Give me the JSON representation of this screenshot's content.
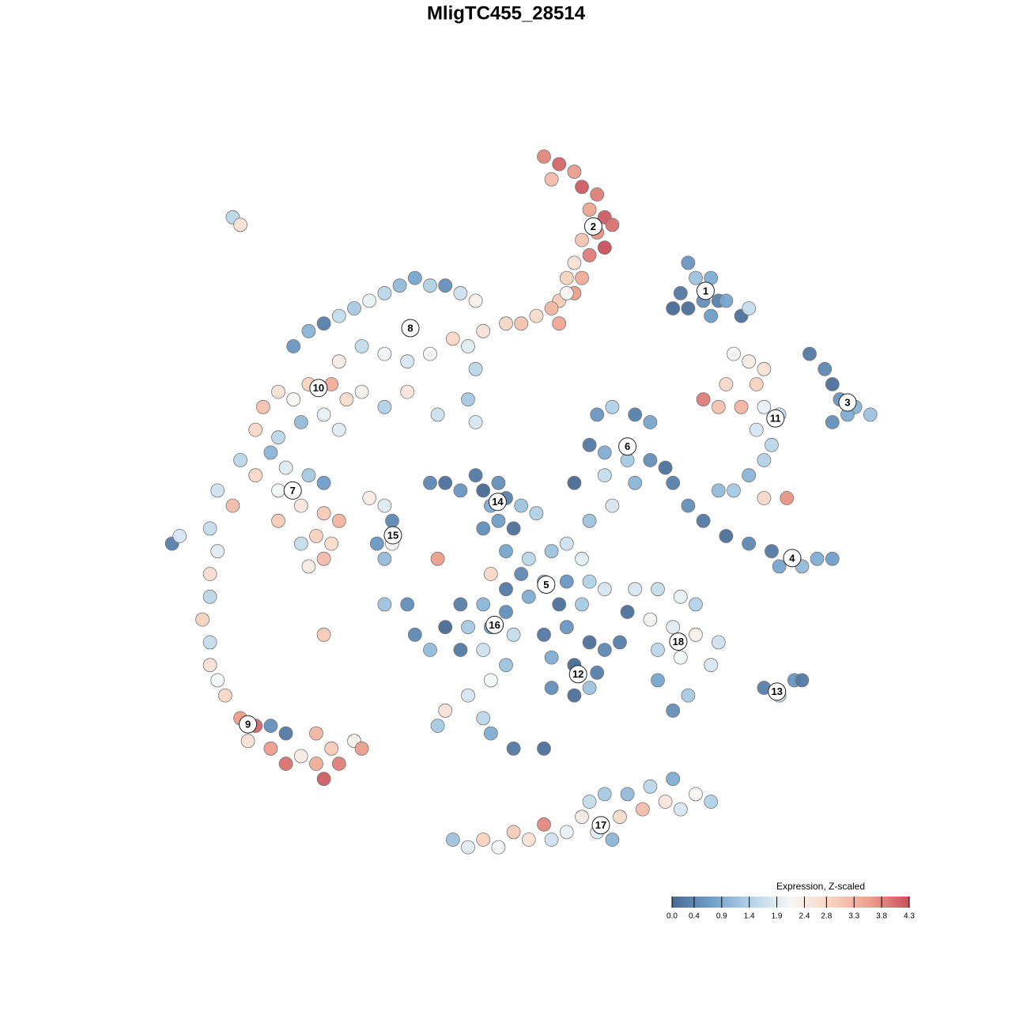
{
  "chart_data": {
    "type": "scatter",
    "title": "MligTC455_28514",
    "xlim": [
      -50,
      50
    ],
    "ylim": [
      -50,
      50
    ],
    "colorscale": [
      "#486a93",
      "#6f9fca",
      "#b4d4e8",
      "#f7f7f7",
      "#f9d4c2",
      "#eca08c",
      "#c9505c"
    ],
    "colorbar": {
      "title": "Expression, Z-scaled",
      "clim": [
        0,
        4.3
      ],
      "ticks": [
        {
          "value": 0,
          "label": "0.0"
        },
        0.4,
        0.9,
        1.4,
        1.9,
        2.4,
        2.8,
        3.3,
        3.8,
        4.3
      ]
    },
    "x": [
      5,
      7,
      9,
      6,
      10,
      12,
      11,
      13,
      14,
      12,
      10,
      13,
      11,
      9,
      10,
      8,
      9,
      7,
      6,
      4,
      2,
      0,
      7,
      8,
      24,
      25,
      27,
      23,
      26,
      28,
      24,
      27,
      29,
      22,
      31,
      40,
      42,
      43,
      44,
      46,
      48,
      43,
      45,
      30,
      32,
      34,
      33,
      29,
      26,
      28,
      31,
      34,
      36,
      33,
      35,
      34,
      32,
      30,
      28,
      34,
      37,
      22,
      24,
      26,
      29,
      32,
      35,
      38,
      41,
      43,
      39,
      36,
      12,
      14,
      17,
      19,
      11,
      13,
      16,
      19,
      21,
      13,
      17,
      9,
      14,
      11,
      -10,
      -8,
      -6,
      -4,
      -3,
      -1,
      -2,
      0,
      2,
      -1,
      1,
      4,
      -3,
      0,
      3,
      6,
      8,
      10,
      2,
      5,
      8,
      11,
      13,
      0,
      3,
      7,
      10,
      -2,
      -9,
      -6,
      -3,
      0,
      -8,
      -5,
      -2,
      1,
      -12,
      -10,
      -6,
      -3,
      0,
      -2,
      -5,
      -8,
      -9,
      -3,
      -2,
      1,
      5,
      8,
      11,
      13,
      6,
      9,
      12,
      6,
      9,
      11,
      15,
      16,
      17,
      20,
      23,
      25,
      19,
      22,
      25,
      28,
      20,
      23,
      27,
      20,
      24,
      22,
      34,
      36,
      38,
      39,
      -7,
      -5,
      -3,
      -1,
      1,
      3,
      5,
      6,
      8,
      10,
      11,
      13,
      12,
      15,
      16,
      18,
      19,
      21,
      22,
      23,
      25,
      27,
      14,
      -28,
      -26,
      -24,
      -22,
      -20,
      -18,
      -16,
      -14,
      -12,
      -10,
      -8,
      -6,
      -4,
      -3,
      -5,
      -7,
      -10,
      -13,
      -16,
      -19,
      -22,
      -4,
      -5,
      -4,
      -9,
      -13,
      -16,
      -30,
      -32,
      -28,
      -26,
      -23,
      -21,
      -24,
      -27,
      -33,
      -30,
      -22,
      -19,
      -35,
      -33,
      -31,
      -29,
      -26,
      -24,
      -30,
      -27,
      -24,
      -22,
      -25,
      -27,
      -24,
      -26,
      -23,
      -30,
      -36,
      -38,
      -18,
      -16,
      -15,
      -15,
      -16,
      -17,
      -39,
      -38,
      -39,
      -39,
      -40,
      -39,
      -39,
      -38,
      -37,
      -35,
      -33,
      -34,
      -31,
      -29,
      -31,
      -29,
      -27,
      -25,
      -23,
      -22,
      -24,
      -20,
      -19,
      -25,
      -36,
      -35,
      -44,
      -43,
      -24,
      -16,
      -13,
      5,
      32
    ],
    "y": [
      45,
      44,
      43,
      42,
      41,
      40,
      38,
      37,
      36,
      35,
      34,
      33,
      32,
      31,
      29,
      29,
      27,
      26,
      25,
      24,
      23,
      23,
      23,
      27,
      31,
      29,
      29,
      27,
      26,
      26,
      25,
      24,
      26,
      25,
      24,
      19,
      17,
      15,
      13,
      12,
      11,
      10,
      11,
      19,
      18,
      17,
      15,
      15,
      13,
      12,
      12,
      12,
      11,
      9,
      7,
      5,
      3,
      1,
      1,
      0,
      0,
      2,
      -1,
      -3,
      -5,
      -6,
      -7,
      -8,
      -8,
      -8,
      -9,
      -9,
      11,
      12,
      11,
      10,
      7,
      6,
      5,
      5,
      4,
      3,
      2,
      2,
      -1,
      -3,
      2,
      2,
      1,
      3,
      1,
      2,
      -1,
      0,
      -1,
      -3,
      -4,
      -2,
      -4,
      -7,
      -8,
      -7,
      -6,
      -8,
      -10,
      -11,
      -11,
      -11,
      -12,
      -12,
      -13,
      -14,
      -14,
      -10,
      -8,
      -14,
      -14,
      -15,
      -17,
      -17,
      -17,
      -18,
      -18,
      -20,
      -20,
      -20,
      -22,
      -24,
      -26,
      -28,
      -30,
      -29,
      -31,
      -33,
      -18,
      -17,
      -19,
      -20,
      -21,
      -22,
      -23,
      -25,
      -26,
      -25,
      -19,
      -15,
      -12,
      -12,
      -13,
      -14,
      -16,
      -17,
      -18,
      -19,
      -20,
      -21,
      -22,
      -24,
      -26,
      -28,
      -25,
      -26,
      -24,
      -24,
      -45,
      -46,
      -45,
      -46,
      -44,
      -45,
      -43,
      -45,
      -44,
      -42,
      -40,
      -39,
      -44,
      -42,
      -39,
      -41,
      -38,
      -40,
      -37,
      -41,
      -39,
      -40,
      -45,
      20,
      22,
      23,
      24,
      25,
      26,
      27,
      28,
      29,
      28,
      28,
      27,
      26,
      22,
      20,
      21,
      19,
      18,
      19,
      20,
      18,
      17,
      13,
      10,
      11,
      14,
      12,
      14,
      12,
      13,
      15,
      15,
      13,
      11,
      10,
      9,
      8,
      9,
      14,
      5,
      3,
      6,
      4,
      3,
      2,
      1,
      -1,
      -2,
      -3,
      -5,
      -6,
      -8,
      -9,
      -6,
      -3,
      -1,
      1,
      0,
      -1,
      -3,
      -6,
      -8,
      -6,
      -4,
      -7,
      -10,
      -13,
      -16,
      -19,
      -22,
      -24,
      -26,
      -29,
      -30,
      -32,
      -30,
      -31,
      -33,
      -35,
      -34,
      -35,
      -33,
      -35,
      -37,
      -32,
      -33,
      -31,
      37,
      36,
      -6,
      -5,
      -18,
      -14,
      -14,
      -33,
      25
    ],
    "values": [
      3.8,
      4.1,
      3.6,
      3.2,
      4.2,
      3.9,
      3.5,
      4.2,
      4.0,
      3.7,
      3.1,
      4.3,
      3.9,
      2.6,
      3.4,
      2.9,
      3.6,
      3.0,
      3.3,
      2.7,
      3.1,
      2.8,
      3.5,
      2.2,
      0.6,
      1.2,
      0.9,
      0.2,
      0.5,
      0.3,
      0.1,
      0.7,
      0.8,
      0.0,
      0.1,
      0.2,
      0.4,
      0.1,
      0.6,
      1.0,
      1.2,
      0.5,
      0.9,
      2.2,
      2.4,
      2.6,
      2.9,
      2.8,
      3.9,
      3.1,
      3.3,
      2.0,
      1.6,
      1.8,
      1.5,
      1.4,
      1.0,
      1.3,
      1.1,
      2.8,
      3.7,
      0.3,
      0.5,
      0.2,
      0.1,
      0.4,
      0.2,
      0.6,
      0.9,
      0.7,
      1.1,
      0.8,
      0.6,
      1.4,
      0.3,
      0.8,
      0.2,
      0.9,
      1.3,
      0.5,
      0.1,
      1.6,
      1.0,
      0.0,
      1.8,
      1.2,
      0.4,
      0.1,
      0.6,
      0.2,
      0.0,
      0.5,
      0.9,
      0.3,
      1.2,
      0.7,
      0.1,
      1.4,
      0.5,
      0.8,
      1.5,
      1.2,
      1.7,
      1.9,
      0.4,
      1.1,
      0.6,
      1.4,
      1.8,
      0.2,
      0.9,
      0.1,
      1.3,
      2.8,
      3.6,
      0.3,
      1.0,
      0.5,
      0.0,
      1.3,
      0.7,
      1.6,
      0.4,
      1.1,
      0.2,
      1.7,
      1.2,
      2.1,
      1.8,
      2.6,
      1.3,
      1.5,
      0.9,
      0.2,
      0.2,
      0.6,
      0.1,
      0.4,
      0.9,
      0.0,
      0.3,
      0.5,
      0.1,
      1.2,
      0.3,
      0.1,
      1.8,
      1.6,
      2.0,
      1.4,
      2.2,
      1.9,
      2.3,
      1.7,
      1.5,
      2.1,
      1.8,
      0.8,
      1.3,
      0.5,
      0.3,
      1.6,
      0.6,
      0.2,
      1.2,
      1.9,
      2.9,
      2.1,
      3.0,
      2.6,
      3.8,
      1.7,
      2.0,
      2.4,
      1.6,
      1.3,
      1.9,
      2.7,
      1.1,
      3.2,
      1.5,
      2.5,
      0.9,
      1.8,
      2.2,
      1.4,
      1.0,
      0.6,
      1.0,
      0.3,
      1.6,
      1.3,
      2.0,
      1.5,
      1.1,
      0.8,
      1.4,
      0.5,
      1.7,
      2.3,
      2.6,
      1.9,
      2.8,
      2.2,
      1.8,
      2.1,
      1.6,
      2.4,
      1.5,
      1.3,
      1.8,
      1.7,
      2.5,
      1.4,
      2.6,
      3.1,
      2.2,
      2.9,
      3.4,
      2.7,
      2.0,
      1.1,
      2.8,
      1.5,
      1.9,
      2.3,
      1.5,
      2.8,
      1.0,
      1.9,
      1.3,
      0.7,
      2.1,
      2.5,
      3.0,
      3.3,
      2.9,
      1.6,
      3.2,
      2.4,
      2.7,
      3.0,
      3.2,
      1.7,
      2.4,
      1.9,
      0.4,
      2.2,
      1.1,
      0.6,
      1.6,
      1.9,
      2.7,
      1.5,
      2.9,
      1.6,
      2.6,
      2.1,
      2.8,
      3.6,
      4.1,
      2.6,
      0.5,
      0.2,
      3.6,
      4.0,
      2.4,
      3.4,
      3.0,
      3.9,
      4.2,
      2.3,
      3.6,
      3.3,
      1.5,
      2.6,
      0.3,
      1.8,
      3.0,
      1.2,
      0.5,
      0.1,
      1.6
    ],
    "annotations": [
      {
        "text": "1",
        "x": 26.3,
        "y": 27.3
      },
      {
        "text": "2",
        "x": 11.5,
        "y": 35.8
      },
      {
        "text": "3",
        "x": 45.0,
        "y": 12.6
      },
      {
        "text": "4",
        "x": 37.7,
        "y": -7.9
      },
      {
        "text": "5",
        "x": 5.3,
        "y": -11.4
      },
      {
        "text": "6",
        "x": 16.0,
        "y": 6.8
      },
      {
        "text": "7",
        "x": -28.1,
        "y": 1.0
      },
      {
        "text": "8",
        "x": -12.6,
        "y": 22.4
      },
      {
        "text": "9",
        "x": -34.0,
        "y": -29.8
      },
      {
        "text": "10",
        "x": -24.7,
        "y": 14.5
      },
      {
        "text": "11",
        "x": 35.5,
        "y": 10.5
      },
      {
        "text": "12",
        "x": 9.5,
        "y": -23.2
      },
      {
        "text": "13",
        "x": 35.7,
        "y": -25.5
      },
      {
        "text": "14",
        "x": -1.1,
        "y": -0.5
      },
      {
        "text": "15",
        "x": -14.9,
        "y": -4.9
      },
      {
        "text": "16",
        "x": -1.5,
        "y": -16.7
      },
      {
        "text": "17",
        "x": 12.5,
        "y": -43.1
      },
      {
        "text": "18",
        "x": 22.7,
        "y": -18.9
      }
    ]
  }
}
